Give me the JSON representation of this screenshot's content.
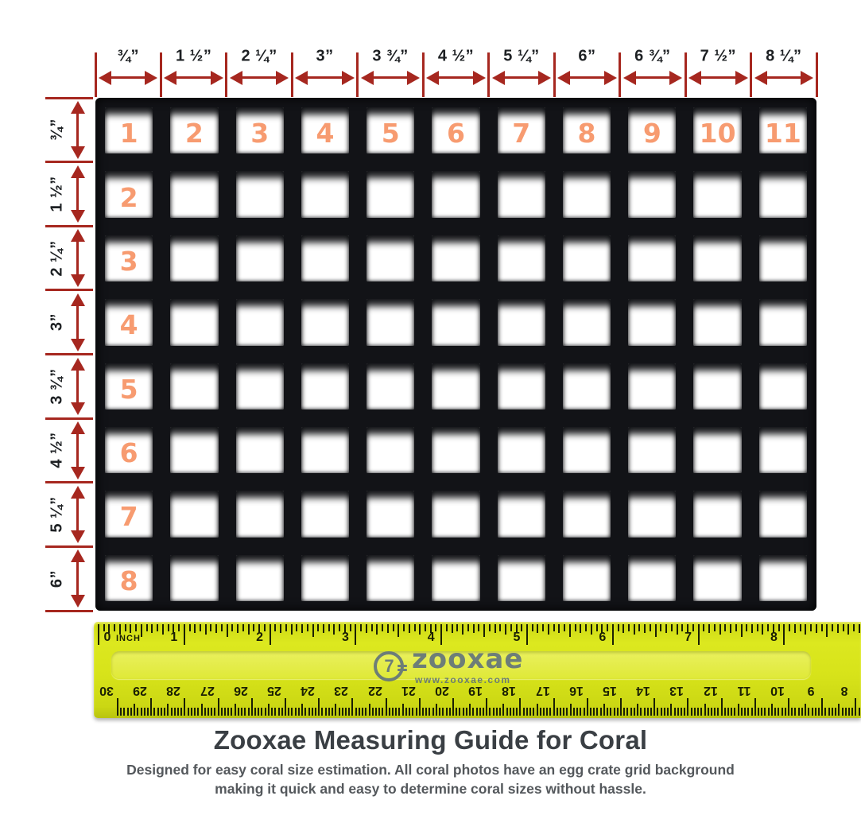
{
  "top_scale": {
    "labels": [
      "¾”",
      "1 ½”",
      "2 ¼”",
      "3”",
      "3 ¾”",
      "4 ½”",
      "5 ¼”",
      "6”",
      "6 ¾”",
      "7 ½”",
      "8 ¼”"
    ]
  },
  "left_scale": {
    "labels": [
      "¾”",
      "1 ½”",
      "2 ¼”",
      "3”",
      "3 ¾”",
      "4 ½”",
      "5 ¼”",
      "6”"
    ]
  },
  "grid": {
    "cols": 11,
    "rows": 8,
    "col_numbers": [
      "1",
      "2",
      "3",
      "4",
      "5",
      "6",
      "7",
      "8",
      "9",
      "10",
      "11"
    ],
    "row_numbers": [
      "2",
      "3",
      "4",
      "5",
      "6",
      "7",
      "8"
    ]
  },
  "ruler": {
    "unit_label": "INCH",
    "inch_numbers": [
      "0",
      "1",
      "2",
      "3",
      "4",
      "5",
      "6",
      "7",
      "8"
    ],
    "cm_numbers": [
      "30",
      "29",
      "28",
      "27",
      "26",
      "25",
      "24",
      "23",
      "22",
      "21",
      "20",
      "19",
      "18",
      "17",
      "16",
      "15",
      "14",
      "13",
      "12",
      "11",
      "10",
      "9",
      "8"
    ],
    "logo": {
      "mark": "7",
      "brand": "zooxae",
      "url": "www.zooxae.com"
    }
  },
  "footer": {
    "title": "Zooxae Measuring Guide for Coral",
    "subtitle": "Designed for easy coral size estimation. All coral photos have an egg crate grid background making it quick and easy to determine coral sizes without hassle."
  },
  "colors": {
    "measure_red": "#a6271f",
    "cell_number_orange": "#f79b70",
    "ruler_yellow": "#d8e31a",
    "logo_slate": "#5d6f7e",
    "title_color": "#3a3f44",
    "subtitle_color": "#54585c"
  }
}
